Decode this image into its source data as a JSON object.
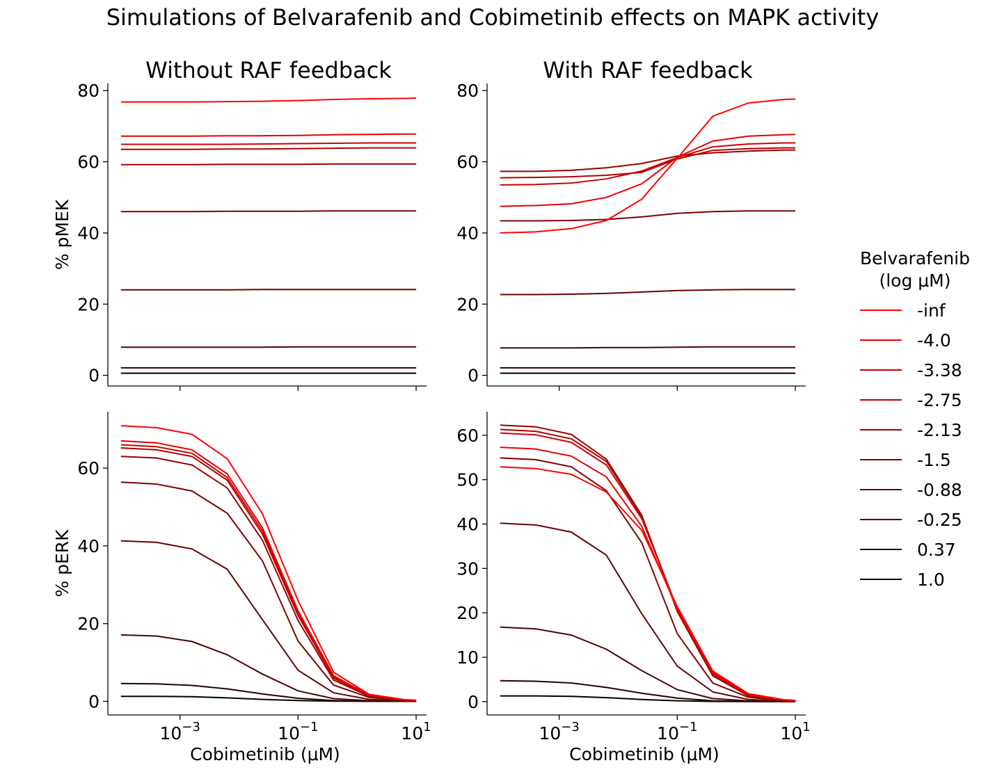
{
  "figure": {
    "suptitle": "Simulations of Belvarafenib and Cobimetinib effects on MAPK activity"
  },
  "legend": {
    "title_line1": "Belvarafenib",
    "title_line2": "(log μM)",
    "entries": [
      "-inf",
      "-4.0",
      "-3.38",
      "-2.75",
      "-2.13",
      "-1.5",
      "-0.88",
      "-0.25",
      "0.37",
      "1.0"
    ],
    "colors": [
      "#ff0000",
      "#e60000",
      "#cc0000",
      "#b30000",
      "#990000",
      "#800000",
      "#660000",
      "#4d0000",
      "#260000",
      "#000000"
    ]
  },
  "chart_data": [
    {
      "type": "line",
      "panel": "top-left",
      "title": "Without RAF feedback",
      "xlabel": "",
      "ylabel": "% pMEK",
      "xscale": "log",
      "xlim": [
        6e-05,
        15
      ],
      "ylim": [
        -3,
        82
      ],
      "yticks": [
        0,
        20,
        40,
        60,
        80
      ],
      "x": [
        0.0001,
        0.0004,
        0.0016,
        0.0063,
        0.025,
        0.1,
        0.4,
        1.6,
        6.3,
        10
      ],
      "series": [
        {
          "name": "-inf",
          "values": [
            76.8,
            76.8,
            76.8,
            76.9,
            77.0,
            77.2,
            77.5,
            77.7,
            77.8,
            77.9
          ]
        },
        {
          "name": "-4.0",
          "values": [
            67.2,
            67.2,
            67.2,
            67.3,
            67.3,
            67.4,
            67.6,
            67.7,
            67.8,
            67.8
          ]
        },
        {
          "name": "-3.38",
          "values": [
            64.9,
            64.9,
            64.9,
            64.9,
            65.0,
            65.1,
            65.2,
            65.3,
            65.3,
            65.3
          ]
        },
        {
          "name": "-2.75",
          "values": [
            63.5,
            63.5,
            63.5,
            63.6,
            63.6,
            63.7,
            63.8,
            63.9,
            63.9,
            63.9
          ]
        },
        {
          "name": "-2.13",
          "values": [
            59.2,
            59.2,
            59.2,
            59.3,
            59.3,
            59.3,
            59.4,
            59.4,
            59.4,
            59.4
          ]
        },
        {
          "name": "-1.5",
          "values": [
            46.0,
            46.0,
            46.0,
            46.1,
            46.1,
            46.1,
            46.2,
            46.2,
            46.2,
            46.2
          ]
        },
        {
          "name": "-0.88",
          "values": [
            24.0,
            24.0,
            24.0,
            24.0,
            24.1,
            24.1,
            24.1,
            24.1,
            24.1,
            24.1
          ]
        },
        {
          "name": "-0.25",
          "values": [
            7.9,
            7.9,
            7.9,
            7.9,
            7.9,
            8.0,
            8.0,
            8.0,
            8.0,
            8.0
          ]
        },
        {
          "name": "0.37",
          "values": [
            2.1,
            2.1,
            2.1,
            2.1,
            2.1,
            2.1,
            2.1,
            2.1,
            2.1,
            2.1
          ]
        },
        {
          "name": "1.0",
          "values": [
            0.6,
            0.6,
            0.6,
            0.6,
            0.6,
            0.6,
            0.6,
            0.6,
            0.6,
            0.6
          ]
        }
      ]
    },
    {
      "type": "line",
      "panel": "top-right",
      "title": "With RAF feedback",
      "xlabel": "",
      "ylabel": "",
      "xscale": "log",
      "xlim": [
        6e-05,
        15
      ],
      "ylim": [
        -3,
        82
      ],
      "yticks": [
        0,
        20,
        40,
        60,
        80
      ],
      "x": [
        0.0001,
        0.0004,
        0.0016,
        0.0063,
        0.025,
        0.1,
        0.4,
        1.6,
        6.3,
        10
      ],
      "series": [
        {
          "name": "-inf",
          "values": [
            40.0,
            40.3,
            41.2,
            43.5,
            49.5,
            61.0,
            72.8,
            76.5,
            77.5,
            77.6
          ]
        },
        {
          "name": "-4.0",
          "values": [
            47.5,
            47.7,
            48.2,
            50.0,
            53.8,
            61.3,
            65.8,
            67.2,
            67.6,
            67.7
          ]
        },
        {
          "name": "-3.38",
          "values": [
            53.5,
            53.6,
            54.0,
            55.2,
            57.4,
            61.2,
            64.2,
            65.0,
            65.3,
            65.3
          ]
        },
        {
          "name": "-2.75",
          "values": [
            55.5,
            55.6,
            55.8,
            56.2,
            57.0,
            60.8,
            63.2,
            63.7,
            63.9,
            63.9
          ]
        },
        {
          "name": "-2.13",
          "values": [
            57.3,
            57.3,
            57.6,
            58.3,
            59.5,
            61.6,
            62.5,
            63.0,
            63.3,
            63.3
          ]
        },
        {
          "name": "-1.5",
          "values": [
            43.4,
            43.4,
            43.5,
            43.8,
            44.5,
            45.5,
            46.0,
            46.2,
            46.2,
            46.2
          ]
        },
        {
          "name": "-0.88",
          "values": [
            22.7,
            22.7,
            22.8,
            23.0,
            23.4,
            23.8,
            24.0,
            24.1,
            24.1,
            24.1
          ]
        },
        {
          "name": "-0.25",
          "values": [
            7.7,
            7.7,
            7.7,
            7.8,
            7.8,
            7.9,
            8.0,
            8.0,
            8.0,
            8.0
          ]
        },
        {
          "name": "0.37",
          "values": [
            2.1,
            2.1,
            2.1,
            2.1,
            2.1,
            2.1,
            2.1,
            2.1,
            2.1,
            2.1
          ]
        },
        {
          "name": "1.0",
          "values": [
            0.6,
            0.6,
            0.6,
            0.6,
            0.6,
            0.6,
            0.6,
            0.6,
            0.6,
            0.6
          ]
        }
      ]
    },
    {
      "type": "line",
      "panel": "bottom-left",
      "title": "",
      "xlabel": "Cobimetinib (μM)",
      "ylabel": "% pERK",
      "xscale": "log",
      "xlim": [
        6e-05,
        15
      ],
      "ylim": [
        -3.5,
        74.5
      ],
      "yticks": [
        0,
        20,
        40,
        60
      ],
      "xticks": [
        0.001,
        0.1,
        10
      ],
      "xtick_base": "10",
      "xtick_exponents": [
        "−3",
        "−1",
        "1"
      ],
      "x": [
        0.0001,
        0.0004,
        0.0016,
        0.0063,
        0.025,
        0.1,
        0.4,
        1.6,
        6.3,
        10
      ],
      "series": [
        {
          "name": "-inf",
          "values": [
            70.9,
            70.4,
            68.7,
            62.4,
            48.2,
            25.9,
            7.5,
            1.8,
            0.45,
            0.3
          ]
        },
        {
          "name": "-4.0",
          "values": [
            67.0,
            66.5,
            64.7,
            58.5,
            44.6,
            23.3,
            6.6,
            1.6,
            0.4,
            0.25
          ]
        },
        {
          "name": "-3.38",
          "values": [
            66.0,
            65.5,
            63.8,
            57.6,
            43.8,
            22.6,
            6.3,
            1.5,
            0.38,
            0.25
          ]
        },
        {
          "name": "-2.75",
          "values": [
            65.2,
            64.7,
            63.0,
            56.9,
            43.0,
            22.1,
            6.0,
            1.4,
            0.36,
            0.25
          ]
        },
        {
          "name": "-2.13",
          "values": [
            63.0,
            62.6,
            60.8,
            54.9,
            41.4,
            20.8,
            5.5,
            1.3,
            0.34,
            0.2
          ]
        },
        {
          "name": "-1.5",
          "values": [
            56.4,
            55.9,
            54.1,
            48.4,
            36.1,
            15.5,
            4.2,
            1.0,
            0.26,
            0.15
          ]
        },
        {
          "name": "-0.88",
          "values": [
            41.3,
            40.9,
            39.2,
            34.0,
            21.0,
            8.0,
            2.2,
            0.5,
            0.13,
            0.08
          ]
        },
        {
          "name": "-0.25",
          "values": [
            17.1,
            16.8,
            15.4,
            12.0,
            7.0,
            2.7,
            0.7,
            0.17,
            0.05,
            0.03
          ]
        },
        {
          "name": "0.37",
          "values": [
            4.6,
            4.5,
            4.1,
            3.2,
            1.9,
            0.8,
            0.2,
            0.05,
            0.01,
            0.01
          ]
        },
        {
          "name": "1.0",
          "values": [
            1.3,
            1.3,
            1.2,
            0.9,
            0.5,
            0.2,
            0.06,
            0.01,
            0.0,
            0.0
          ]
        }
      ]
    },
    {
      "type": "line",
      "panel": "bottom-right",
      "title": "",
      "xlabel": "Cobimetinib (μM)",
      "ylabel": "",
      "xscale": "log",
      "xlim": [
        6e-05,
        15
      ],
      "ylim": [
        -3.0,
        65.3
      ],
      "yticks": [
        0,
        10,
        20,
        30,
        40,
        50,
        60
      ],
      "xticks": [
        0.001,
        0.1,
        10
      ],
      "xtick_base": "10",
      "xtick_exponents": [
        "−3",
        "−1",
        "1"
      ],
      "x": [
        0.0001,
        0.0004,
        0.0016,
        0.0063,
        0.025,
        0.1,
        0.4,
        1.6,
        6.3,
        10
      ],
      "series": [
        {
          "name": "-inf",
          "values": [
            52.9,
            52.5,
            51.2,
            47.2,
            38.6,
            21.4,
            6.9,
            1.8,
            0.45,
            0.3
          ]
        },
        {
          "name": "-4.0",
          "values": [
            57.3,
            56.9,
            55.3,
            50.6,
            39.5,
            20.8,
            6.6,
            1.6,
            0.4,
            0.25
          ]
        },
        {
          "name": "-3.38",
          "values": [
            60.5,
            60.1,
            58.4,
            53.3,
            41.2,
            21.0,
            6.4,
            1.5,
            0.38,
            0.25
          ]
        },
        {
          "name": "-2.75",
          "values": [
            61.3,
            60.9,
            59.2,
            54.1,
            41.7,
            20.8,
            6.2,
            1.4,
            0.36,
            0.2
          ]
        },
        {
          "name": "-2.13",
          "values": [
            62.3,
            61.9,
            60.2,
            54.6,
            42.0,
            20.3,
            5.8,
            1.3,
            0.34,
            0.2
          ]
        },
        {
          "name": "-1.5",
          "values": [
            54.9,
            54.5,
            52.9,
            47.5,
            35.8,
            15.3,
            4.2,
            1.0,
            0.26,
            0.15
          ]
        },
        {
          "name": "-0.88",
          "values": [
            40.2,
            39.8,
            38.2,
            33.0,
            19.8,
            8.0,
            2.2,
            0.5,
            0.13,
            0.08
          ]
        },
        {
          "name": "-0.25",
          "values": [
            16.8,
            16.4,
            15.0,
            11.8,
            7.0,
            2.7,
            0.7,
            0.17,
            0.05,
            0.03
          ]
        },
        {
          "name": "0.37",
          "values": [
            4.7,
            4.6,
            4.2,
            3.2,
            1.9,
            0.8,
            0.2,
            0.05,
            0.01,
            0.01
          ]
        },
        {
          "name": "1.0",
          "values": [
            1.3,
            1.3,
            1.2,
            0.9,
            0.5,
            0.2,
            0.06,
            0.01,
            0.0,
            0.0
          ]
        }
      ]
    }
  ]
}
